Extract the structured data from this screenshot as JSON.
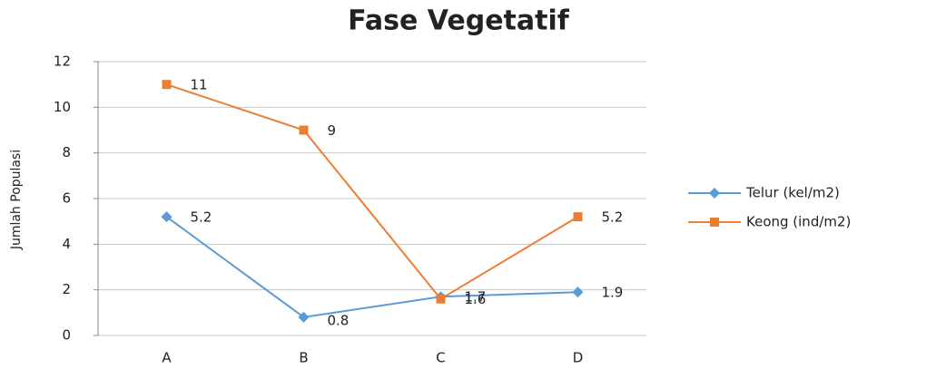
{
  "chart_data": {
    "type": "line",
    "title": "Fase Vegetatif",
    "y_label": "Jumlah Populasi",
    "categories": [
      "A",
      "B",
      "C",
      "D"
    ],
    "series": [
      {
        "name": "Telur (kel/m2)",
        "color": "#5b9bd5",
        "marker": "diamond",
        "values": [
          5.2,
          0.8,
          1.7,
          1.9
        ]
      },
      {
        "name": "Keong (ind/m2)",
        "color": "#ed7d31",
        "marker": "square",
        "values": [
          11,
          9,
          1.6,
          5.2
        ]
      }
    ],
    "ylim": [
      0,
      12
    ],
    "yticks": [
      0,
      2,
      4,
      6,
      8,
      10,
      12
    ],
    "grid": true,
    "legend": "right"
  }
}
